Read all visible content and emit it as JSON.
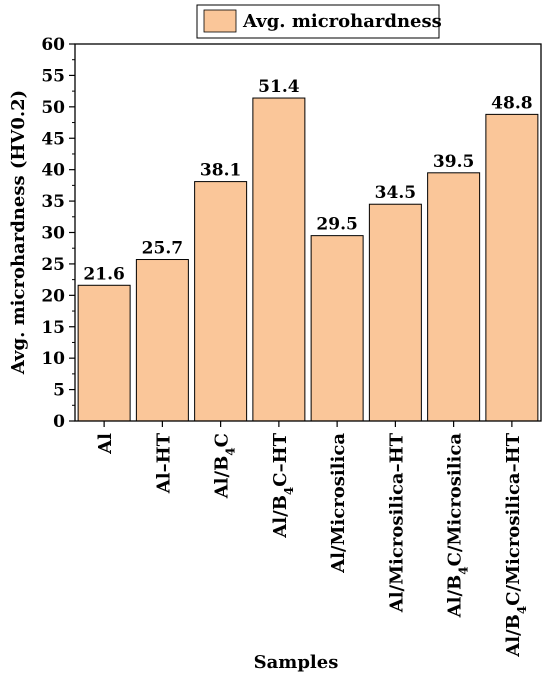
{
  "chart_data": {
    "type": "bar",
    "title": "",
    "xlabel": "Samples",
    "ylabel": "Avg. microhardness (HV0.2)",
    "ylim": [
      0,
      60
    ],
    "yticks": [
      0,
      5,
      10,
      15,
      20,
      25,
      30,
      35,
      40,
      45,
      50,
      55,
      60
    ],
    "grid": false,
    "legend": {
      "position": "top-center",
      "entries": [
        "Avg. microhardness"
      ]
    },
    "bar_color": "#fac699",
    "bar_edge_color": "#000000",
    "series": [
      {
        "name": "Avg. microhardness",
        "values": [
          21.6,
          25.7,
          38.1,
          51.4,
          29.5,
          34.5,
          39.5,
          48.8
        ]
      }
    ],
    "categories": [
      "Al",
      "Al-HT",
      "Al/B4C",
      "Al/B4C-HT",
      "Al/Microsilica",
      "Al/Microsilica-HT",
      "Al/B4C/Microsilica",
      "Al/B4C/Microsilica-HT"
    ],
    "category_labels": [
      [
        {
          "t": "Al"
        }
      ],
      [
        {
          "t": "Al–HT"
        }
      ],
      [
        {
          "t": "Al/B"
        },
        {
          "t": "4",
          "sub": true
        },
        {
          "t": "C"
        }
      ],
      [
        {
          "t": "Al/B"
        },
        {
          "t": "4",
          "sub": true
        },
        {
          "t": "C–HT"
        }
      ],
      [
        {
          "t": "Al/Microsilica"
        }
      ],
      [
        {
          "t": "Al/Microsilica–HT"
        }
      ],
      [
        {
          "t": "Al/B"
        },
        {
          "t": "4",
          "sub": true
        },
        {
          "t": "C/Microsilica"
        }
      ],
      [
        {
          "t": "Al/B"
        },
        {
          "t": "4",
          "sub": true
        },
        {
          "t": "C/Microsilica–HT"
        }
      ]
    ]
  }
}
